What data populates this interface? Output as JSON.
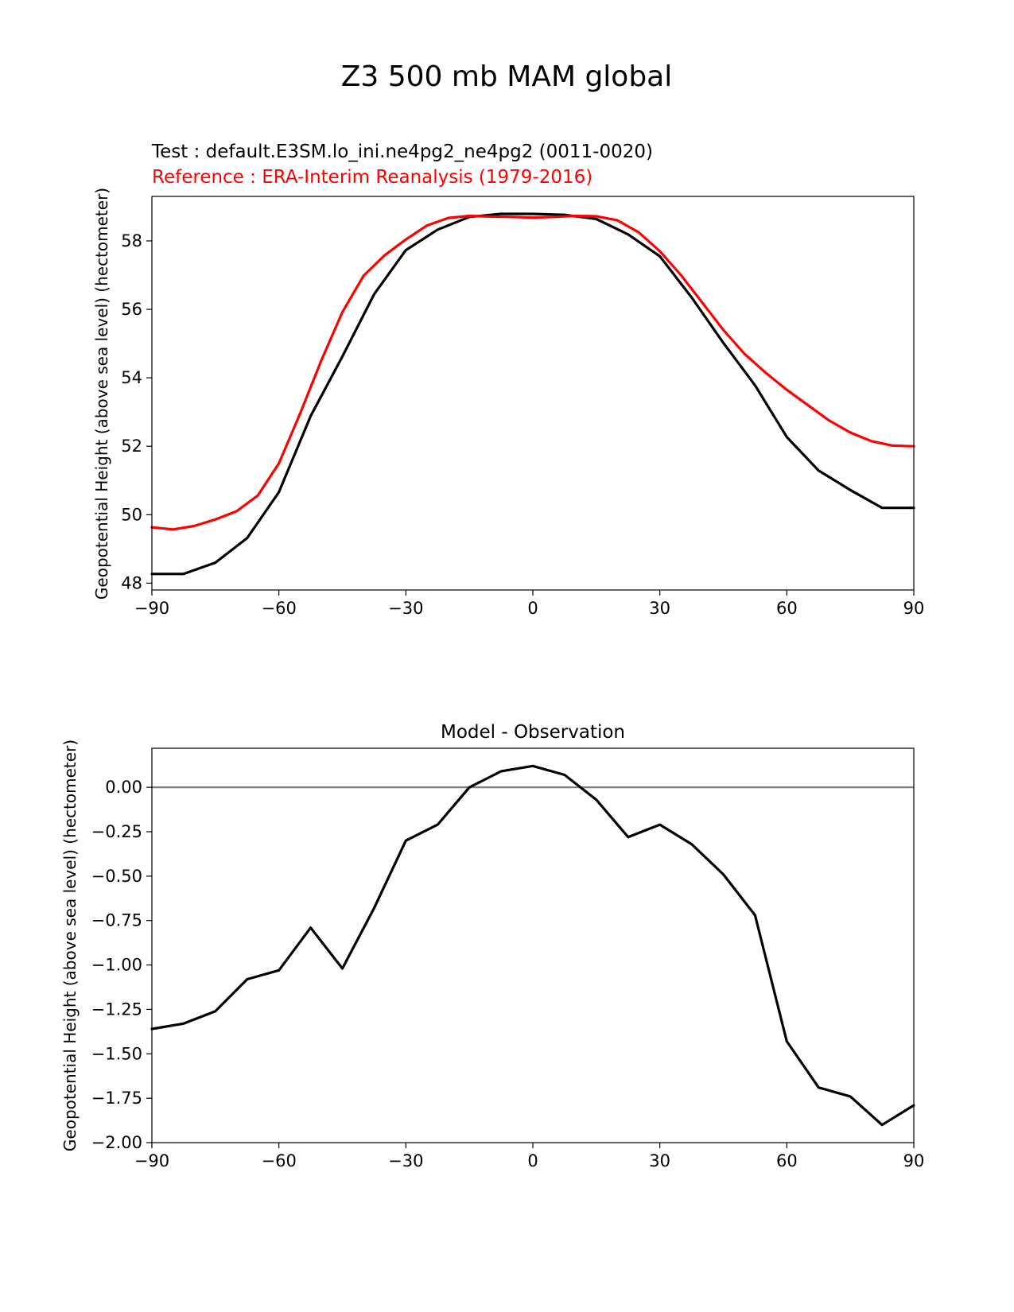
{
  "figure": {
    "suptitle": "Z3 500 mb MAM global"
  },
  "chart_data": [
    {
      "type": "line",
      "test_label": "Test : default.E3SM.lo_ini.ne4pg2_ne4pg2 (0011-0020)",
      "reference_label": "Reference : ERA-Interim Reanalysis (1979-2016)",
      "title": "",
      "xlabel": "",
      "ylabel": "Geopotential Height (above sea level) (hectometer)",
      "xlim": [
        -90,
        90
      ],
      "ylim": [
        47.8,
        59.3
      ],
      "xticks": [
        -90,
        -60,
        -30,
        0,
        30,
        60,
        90
      ],
      "xtick_labels": [
        "−90",
        "−60",
        "−30",
        "0",
        "30",
        "60",
        "90"
      ],
      "yticks": [
        48,
        50,
        52,
        54,
        56,
        58
      ],
      "ytick_labels": [
        "48",
        "50",
        "52",
        "54",
        "56",
        "58"
      ],
      "grid": false,
      "series": [
        {
          "role": "test",
          "color": "#000000",
          "x": [
            -90,
            -82.5,
            -75,
            -67.5,
            -60,
            -52.5,
            -45,
            -37.5,
            -30,
            -22.5,
            -15,
            -7.5,
            0,
            7.5,
            15,
            22.5,
            30,
            37.5,
            45,
            52.5,
            60,
            67.5,
            75,
            82.5,
            90
          ],
          "y": [
            48.27,
            48.27,
            48.6,
            49.32,
            50.66,
            52.88,
            54.62,
            56.44,
            57.73,
            58.33,
            58.7,
            58.79,
            58.79,
            58.76,
            58.64,
            58.19,
            57.55,
            56.35,
            55.02,
            53.78,
            52.27,
            51.29,
            50.72,
            50.2,
            50.2
          ]
        },
        {
          "role": "reference",
          "color": "#ff0000",
          "x": [
            -90,
            -85,
            -80,
            -75,
            -70,
            -65,
            -60,
            -55,
            -50,
            -45,
            -40,
            -35,
            -30,
            -25,
            -20,
            -15,
            -10,
            -5,
            0,
            5,
            10,
            15,
            20,
            25,
            30,
            35,
            40,
            45,
            50,
            55,
            60,
            65,
            70,
            75,
            80,
            85,
            90
          ],
          "y": [
            49.63,
            49.57,
            49.67,
            49.86,
            50.1,
            50.56,
            51.5,
            52.95,
            54.5,
            55.92,
            56.98,
            57.58,
            58.04,
            58.45,
            58.67,
            58.73,
            58.71,
            58.7,
            58.68,
            58.7,
            58.73,
            58.72,
            58.6,
            58.25,
            57.7,
            57.0,
            56.2,
            55.4,
            54.7,
            54.15,
            53.65,
            53.2,
            52.75,
            52.4,
            52.15,
            52.02,
            52.0
          ]
        }
      ]
    },
    {
      "type": "line",
      "title": "Model - Observation",
      "xlabel": "",
      "ylabel": "Geopotential Height (above sea level) (hectometer)",
      "xlim": [
        -90,
        90
      ],
      "ylim": [
        -2.0,
        0.22
      ],
      "xticks": [
        -90,
        -60,
        -30,
        0,
        30,
        60,
        90
      ],
      "xtick_labels": [
        "−90",
        "−60",
        "−30",
        "0",
        "30",
        "60",
        "90"
      ],
      "yticks": [
        0.0,
        -0.25,
        -0.5,
        -0.75,
        -1.0,
        -1.25,
        -1.5,
        -1.75,
        -2.0
      ],
      "ytick_labels": [
        "0.00",
        "−0.25",
        "−0.50",
        "−0.75",
        "−1.00",
        "−1.25",
        "−1.50",
        "−1.75",
        "−2.00"
      ],
      "grid": false,
      "zero_line": {
        "y": 0,
        "color": "#808080"
      },
      "series": [
        {
          "role": "difference",
          "color": "#000000",
          "x": [
            -90,
            -82.5,
            -75,
            -67.5,
            -60,
            -52.5,
            -45,
            -37.5,
            -30,
            -22.5,
            -15,
            -7.5,
            0,
            7.5,
            15,
            22.5,
            30,
            37.5,
            45,
            52.5,
            60,
            67.5,
            75,
            82.5,
            90
          ],
          "y": [
            -1.36,
            -1.33,
            -1.26,
            -1.08,
            -1.03,
            -0.79,
            -1.02,
            -0.68,
            -0.3,
            -0.21,
            0.0,
            0.09,
            0.12,
            0.07,
            -0.07,
            -0.28,
            -0.21,
            -0.32,
            -0.49,
            -0.72,
            -1.43,
            -1.69,
            -1.74,
            -1.9,
            -1.79
          ]
        }
      ]
    }
  ]
}
